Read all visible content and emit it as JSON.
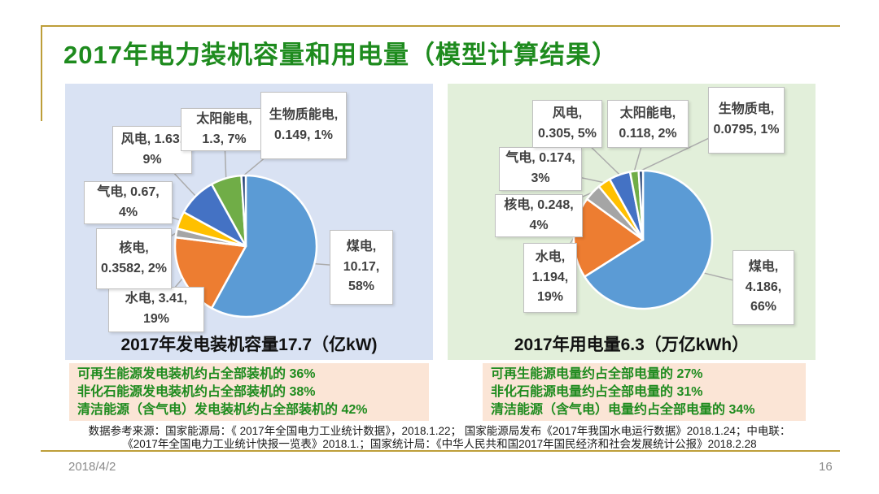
{
  "slide": {
    "title": "2017年电力装机容量和用电量（模型计算结果）",
    "date": "2018/4/2",
    "page_number": "16",
    "source_line1": "数据参考来源：国家能源局：《 2017年全国电力工业统计数据》，2018.1.22； 国家能源局发布《2017年我国水电运行数据》2018.1.24；中电联：",
    "source_line2": "《2017年全国电力工业统计快报一览表》2018.1.；国家统计局：《中华人民共和国2017年国民经济和社会发展统计公报》2018.2.28"
  },
  "colors": {
    "title_green": "#1E8B1E",
    "gold_line": "#BD9E39",
    "left_panel_bg": "#D9E2F3",
    "right_panel_bg": "#E2EFDA",
    "summary_bg": "#FBE5D6",
    "summary_text_green": "#1E8B1E",
    "label_text": "#404040"
  },
  "chart_data": [
    {
      "type": "pie",
      "title": "2017年发电装机容量17.7（亿kW)",
      "total": 17.7,
      "unit": "亿kW",
      "bg": "#D9E2F3",
      "start_angle_deg": 0,
      "direction": "clockwise",
      "label_format": "name, value, percent",
      "slices": [
        {
          "label": "煤电",
          "value": 10.17,
          "pct": 58,
          "color": "#5B9BD5"
        },
        {
          "label": "水电",
          "value": 3.41,
          "pct": 19,
          "color": "#ED7D31"
        },
        {
          "label": "核电",
          "value": 0.3582,
          "pct": 2,
          "color": "#A5A5A5"
        },
        {
          "label": "气电",
          "value": 0.67,
          "pct": 4,
          "color": "#FFC000"
        },
        {
          "label": "风电",
          "value": 1.63,
          "pct": 9,
          "color": "#4472C4"
        },
        {
          "label": "太阳能电",
          "value": 1.3,
          "pct": 7,
          "color": "#70AD47"
        },
        {
          "label": "生物质能电",
          "value": 0.149,
          "pct": 1,
          "color": "#264478"
        }
      ],
      "summary": [
        "可再生能源发电装机约占全部装机的 36%",
        "非化石能源发电装机约占全部装机的 38%",
        "清洁能源（含气电）发电装机约占全部装机的 42%"
      ]
    },
    {
      "type": "pie",
      "title": "2017年用电量6.3（万亿kWh）",
      "total": 6.3,
      "unit": "万亿kWh",
      "bg": "#E2EFDA",
      "start_angle_deg": 0,
      "direction": "clockwise",
      "label_format": "name, value, percent",
      "slices": [
        {
          "label": "煤电",
          "value": 4.186,
          "pct": 66,
          "color": "#5B9BD5"
        },
        {
          "label": "水电",
          "value": 1.194,
          "pct": 19,
          "color": "#ED7D31"
        },
        {
          "label": "核电",
          "value": 0.248,
          "pct": 4,
          "color": "#A5A5A5"
        },
        {
          "label": "气电",
          "value": 0.174,
          "pct": 3,
          "color": "#FFC000"
        },
        {
          "label": "风电",
          "value": 0.305,
          "pct": 5,
          "color": "#4472C4"
        },
        {
          "label": "太阳能电",
          "value": 0.118,
          "pct": 2,
          "color": "#70AD47"
        },
        {
          "label": "生物质电",
          "value": 0.0795,
          "pct": 1,
          "color": "#264478"
        }
      ],
      "summary": [
        "可再生能源电量约占全部电量的 27%",
        "非化石能源电量约占全部电量的 31%",
        "清洁能源（含气电）电量约占全部电量的 34%"
      ]
    }
  ]
}
